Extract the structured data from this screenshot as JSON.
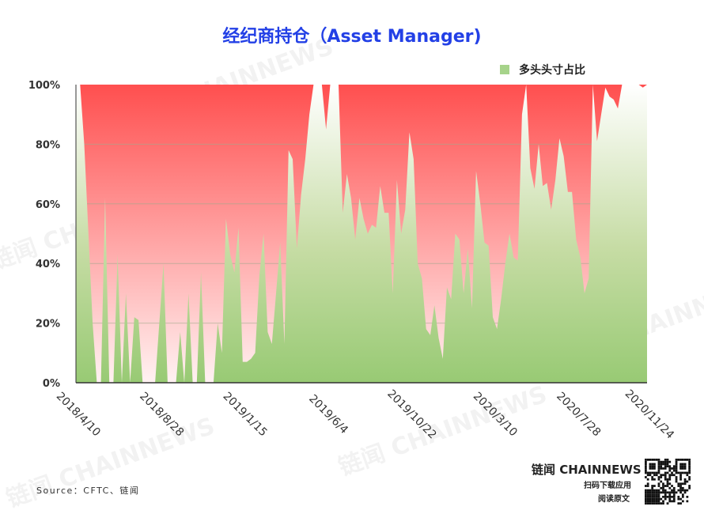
{
  "title": "经纪商持仓（Asset Manager)",
  "legend": {
    "label": "多头头寸占比",
    "color": "#a6d38a"
  },
  "source": "Source：CFTC、链闻",
  "brand": {
    "cn": "链闻",
    "en": "CHAINNEWS",
    "scan": "扫码下载应用",
    "read": "阅读原文"
  },
  "watermark": "链闻 CHAINNEWS",
  "colors": {
    "short_top": "#ff4f4f",
    "short_bottom": "#fff2f2",
    "long_top": "#ffffff",
    "long_bottom": "#98ca74",
    "title": "#2340e6"
  },
  "chart_data": {
    "type": "area",
    "stacked_percent": true,
    "title": "经纪商持仓（Asset Manager)",
    "series": [
      {
        "name": "多头头寸占比",
        "unit": "%"
      }
    ],
    "x_ticks": [
      "2018/4/10",
      "2018/8/28",
      "2019/1/15",
      "2019/6/4",
      "2019/10/22",
      "2020/3/10",
      "2020/7/28",
      "2020/11/24"
    ],
    "y_ticks": [
      "0%",
      "20%",
      "40%",
      "60%",
      "80%",
      "100%"
    ],
    "ylim": [
      0,
      100
    ],
    "grid": true,
    "legend_position": "top-right",
    "values": [
      100,
      100,
      80,
      50,
      20,
      0,
      0,
      62,
      0,
      0,
      43,
      0,
      30,
      0,
      22,
      21,
      0,
      0,
      0,
      0,
      20,
      40,
      0,
      0,
      0,
      17,
      0,
      30,
      0,
      0,
      37,
      0,
      0,
      0,
      20,
      10,
      55,
      43,
      37,
      52,
      7,
      7,
      8,
      10,
      36,
      50,
      17,
      13,
      30,
      47,
      13,
      78,
      75,
      45,
      63,
      75,
      90,
      100,
      100,
      100,
      85,
      100,
      100,
      100,
      57,
      70,
      62,
      48,
      62,
      55,
      50,
      53,
      52,
      66,
      57,
      57,
      30,
      68,
      50,
      58,
      84,
      75,
      40,
      35,
      18,
      16,
      26,
      15,
      8,
      32,
      28,
      50,
      48,
      30,
      45,
      25,
      71,
      60,
      47,
      46,
      22,
      18,
      28,
      40,
      50,
      42,
      41,
      90,
      100,
      72,
      65,
      80,
      66,
      67,
      58,
      68,
      82,
      76,
      64,
      64,
      48,
      42,
      30,
      35,
      100,
      81,
      90,
      99,
      96,
      95,
      92,
      100,
      100,
      100,
      100,
      100,
      99,
      100
    ]
  }
}
